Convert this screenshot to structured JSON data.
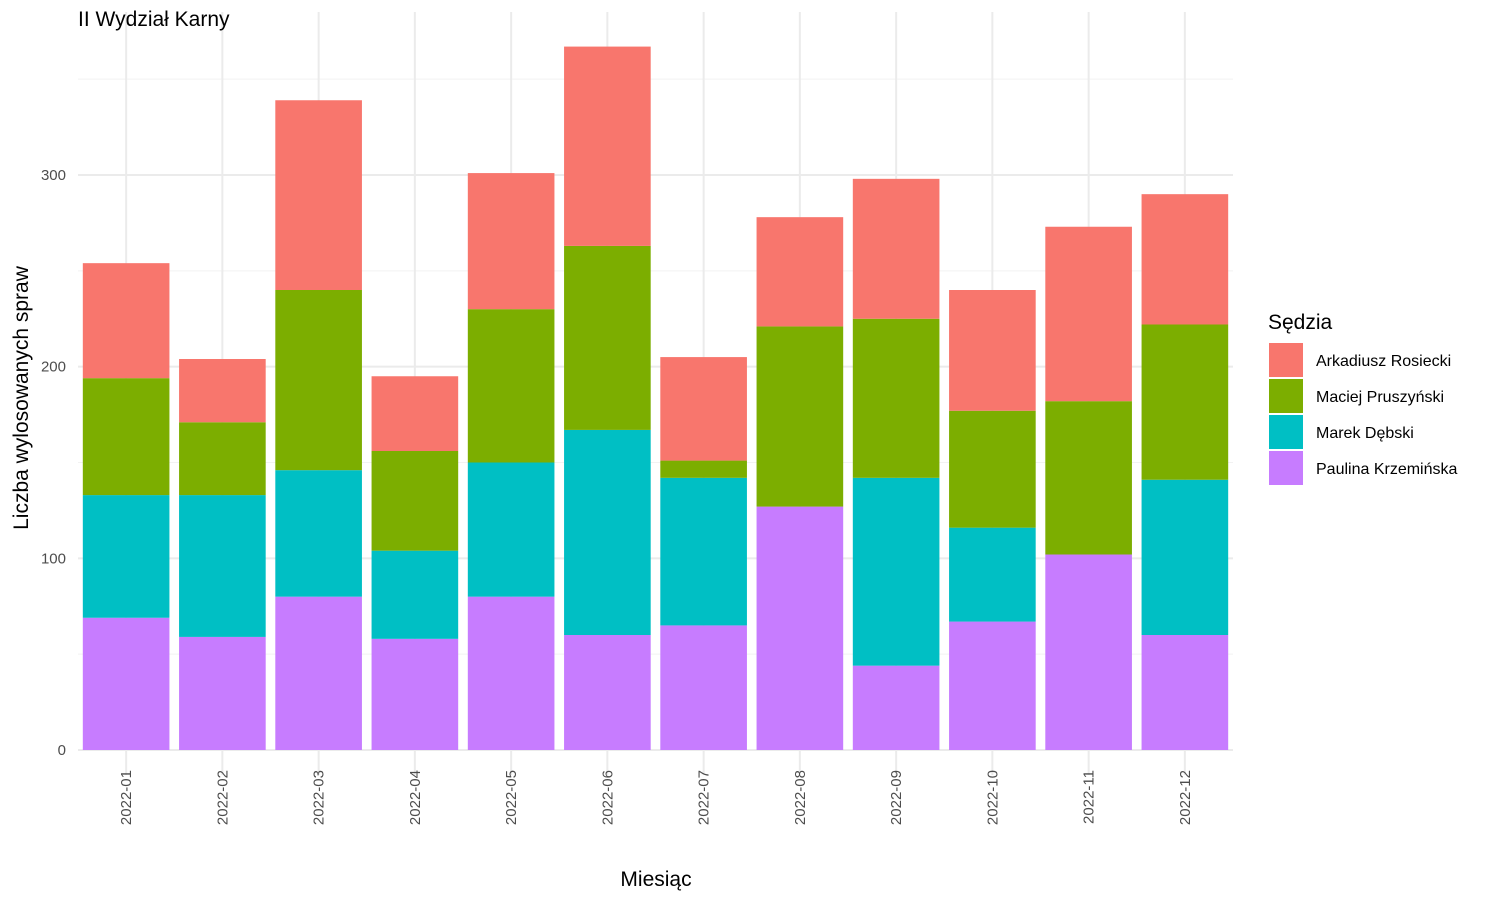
{
  "chart_data": {
    "type": "bar",
    "stacked": true,
    "title": "II Wydział Karny",
    "xlabel": "Miesiąc",
    "ylabel": "Liczba wylosowanych spraw",
    "ylim": [
      0,
      368
    ],
    "yticks": [
      0,
      100,
      200,
      300
    ],
    "grid": true,
    "legend_position": "right",
    "legend_title": "Sędzia",
    "categories": [
      "2022-01",
      "2022-02",
      "2022-03",
      "2022-04",
      "2022-05",
      "2022-06",
      "2022-07",
      "2022-08",
      "2022-09",
      "2022-10",
      "2022-11",
      "2022-12"
    ],
    "series": [
      {
        "name": "Paulina Krzemińska",
        "color": "#C77CFF",
        "values": [
          69,
          59,
          80,
          58,
          80,
          60,
          65,
          127,
          44,
          67,
          102,
          60
        ]
      },
      {
        "name": "Marek Dębski",
        "color": "#00BFC4",
        "values": [
          64,
          74,
          66,
          46,
          70,
          107,
          77,
          0,
          98,
          49,
          0,
          81
        ]
      },
      {
        "name": "Maciej Pruszyński",
        "color": "#7CAE00",
        "values": [
          61,
          38,
          94,
          52,
          80,
          96,
          9,
          94,
          83,
          61,
          80,
          81
        ]
      },
      {
        "name": "Arkadiusz Rosiecki",
        "color": "#F8766D",
        "values": [
          60,
          33,
          99,
          39,
          71,
          104,
          54,
          57,
          73,
          63,
          91,
          68
        ]
      }
    ],
    "legend_order": [
      "Arkadiusz Rosiecki",
      "Maciej Pruszyński",
      "Marek Dębski",
      "Paulina Krzemińska"
    ]
  }
}
